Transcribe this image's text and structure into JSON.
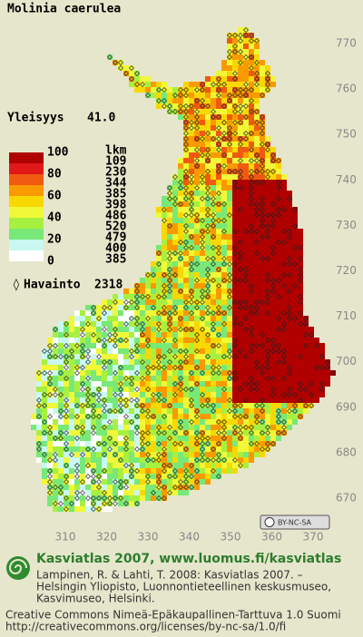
{
  "title": "Molinia caerulea",
  "frequency": {
    "label": "Yleisyys",
    "value": "41.0"
  },
  "legend": {
    "count_header": "lkm",
    "scale_labels": [
      "100",
      "80",
      "60",
      "40",
      "20",
      "0"
    ],
    "colors": [
      "#b00000",
      "#e01818",
      "#f05a10",
      "#f89a00",
      "#f8d800",
      "#f0f838",
      "#a8f040",
      "#78e878",
      "#c8f8f0",
      "#ffffff"
    ],
    "counts": [
      "109",
      "230",
      "344",
      "385",
      "398",
      "486",
      "520",
      "479",
      "400",
      "385"
    ]
  },
  "observations": {
    "symbol": "◊",
    "label": "Havainto",
    "value": "2318"
  },
  "axes": {
    "y_ticks": [
      "770",
      "760",
      "750",
      "740",
      "730",
      "720",
      "710",
      "700",
      "690",
      "680",
      "670"
    ],
    "x_ticks": [
      "310",
      "320",
      "330",
      "340",
      "350",
      "360",
      "370"
    ]
  },
  "license_badge": "BY-NC-SA",
  "footer": {
    "heading": "Kasviatlas 2007, www.luomus.fi/kasviatlas",
    "citation": [
      "Lampinen, R. & Lahti, T. 2008: Kasviatlas 2007. –",
      "Helsingin Yliopisto, Luonnontieteellinen keskusmuseo,",
      "Kasvimuseo, Helsinki."
    ],
    "license": [
      "Creative Commons Nimeä-Epäkaupallinen-Tarttuva 1.0 Suomi",
      "http://creativecommons.org/licenses/by-nc-sa/1.0/fi"
    ]
  }
}
